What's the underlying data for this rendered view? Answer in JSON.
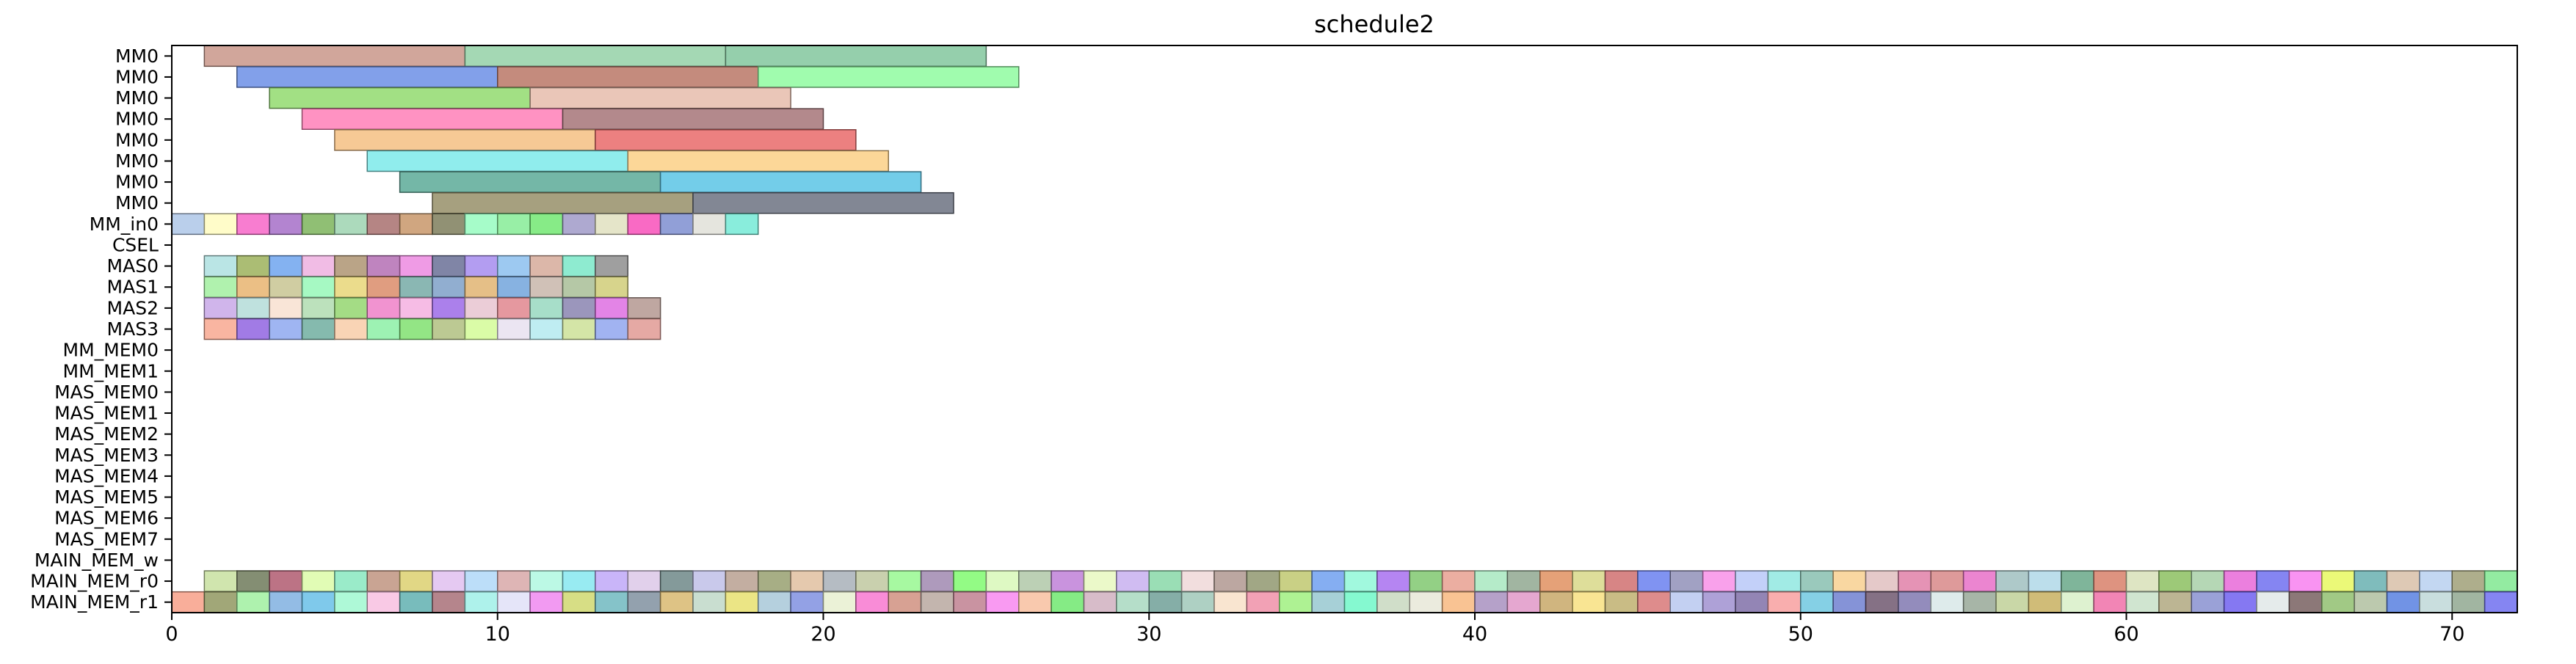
{
  "chart_data": {
    "type": "gantt",
    "title": "schedule2",
    "xlim": [
      0,
      72
    ],
    "x_ticks": [
      0,
      10,
      20,
      30,
      40,
      50,
      60,
      70
    ],
    "y_labels": [
      "MM0",
      "MM0",
      "MM0",
      "MM0",
      "MM0",
      "MM0",
      "MM0",
      "MM0",
      "MM_in0",
      "CSEL",
      "MAS0",
      "MAS1",
      "MAS2",
      "MAS3",
      "MM_MEM0",
      "MM_MEM1",
      "MAS_MEM0",
      "MAS_MEM1",
      "MAS_MEM2",
      "MAS_MEM3",
      "MAS_MEM4",
      "MAS_MEM5",
      "MAS_MEM6",
      "MAS_MEM7",
      "MAIN_MEM_w",
      "MAIN_MEM_r0",
      "MAIN_MEM_r1"
    ],
    "grid": false,
    "rows": {
      "0": {
        "bars": [
          [
            1,
            8
          ],
          [
            9,
            8
          ],
          [
            17,
            8
          ]
        ],
        "colors": [
          "#c9968a",
          "#94d1a7",
          "#83c79e"
        ]
      },
      "1": {
        "bars": [
          [
            2,
            8
          ],
          [
            10,
            8
          ],
          [
            18,
            8
          ]
        ],
        "colors": [
          "#6c8fe6",
          "#ba7766",
          "#8ffca0"
        ]
      },
      "2": {
        "bars": [
          [
            3,
            8
          ],
          [
            11,
            8
          ]
        ],
        "colors": [
          "#92da6e",
          "#e6bcab"
        ]
      },
      "3": {
        "bars": [
          [
            4,
            8
          ],
          [
            12,
            8
          ]
        ],
        "colors": [
          "#ff7fb7",
          "#a67478"
        ]
      },
      "4": {
        "bars": [
          [
            5,
            8
          ],
          [
            13,
            8
          ]
        ],
        "colors": [
          "#f4bf82",
          "#e96a6a"
        ]
      },
      "5": {
        "bars": [
          [
            6,
            8
          ],
          [
            14,
            8
          ]
        ],
        "colors": [
          "#7ceaea",
          "#fbd086"
        ]
      },
      "6": {
        "bars": [
          [
            7,
            8
          ],
          [
            15,
            8
          ]
        ],
        "colors": [
          "#5caa98",
          "#5ac4e5"
        ]
      },
      "7": {
        "bars": [
          [
            8,
            8
          ],
          [
            16,
            8
          ]
        ],
        "colors": [
          "#968f69",
          "#6c7281"
        ]
      },
      "8": {
        "bars": [
          [
            0,
            1
          ],
          [
            1,
            1
          ],
          [
            2,
            1
          ],
          [
            3,
            1
          ],
          [
            4,
            1
          ],
          [
            5,
            1
          ],
          [
            6,
            1
          ],
          [
            7,
            1
          ],
          [
            8,
            1
          ],
          [
            9,
            1
          ],
          [
            10,
            1
          ],
          [
            11,
            1
          ],
          [
            12,
            1
          ],
          [
            13,
            1
          ],
          [
            14,
            1
          ],
          [
            15,
            1
          ],
          [
            16,
            1
          ],
          [
            17,
            1
          ]
        ],
        "colors": [
          "#aec7e8",
          "#fffbc0",
          "#f766c8",
          "#a66ec8",
          "#7cb45c",
          "#9ed4b0",
          "#a8706e",
          "#c8966a",
          "#7e7e5c",
          "#96fcc0",
          "#86ec96",
          "#72e872",
          "#a09ac8",
          "#e0e0c0",
          "#f850ba",
          "#7e8ed0",
          "#e0e0d8",
          "#74ead6"
        ]
      },
      "9": {
        "bars": [],
        "colors": []
      },
      "10": {
        "bars": [
          [
            1,
            1
          ],
          [
            2,
            1
          ],
          [
            3,
            1
          ],
          [
            4,
            1
          ],
          [
            5,
            1
          ],
          [
            6,
            1
          ],
          [
            7,
            1
          ],
          [
            8,
            1
          ],
          [
            9,
            1
          ],
          [
            10,
            1
          ],
          [
            11,
            1
          ],
          [
            12,
            1
          ],
          [
            13,
            1
          ]
        ],
        "colors": [
          "#aee0e0",
          "#9cb25c",
          "#6ea4ee",
          "#eeb0e0",
          "#ae9472",
          "#b46eb4",
          "#ec8ae0",
          "#6a7096",
          "#a68cee",
          "#8cc0ee",
          "#d6aa9a",
          "#7ae8c8",
          "#8e8e8e"
        ]
      },
      "11": {
        "bars": [
          [
            1,
            1
          ],
          [
            2,
            1
          ],
          [
            3,
            1
          ],
          [
            4,
            1
          ],
          [
            5,
            1
          ],
          [
            6,
            1
          ],
          [
            7,
            1
          ],
          [
            8,
            1
          ],
          [
            9,
            1
          ],
          [
            10,
            1
          ],
          [
            11,
            1
          ],
          [
            12,
            1
          ],
          [
            13,
            1
          ]
        ],
        "colors": [
          "#a2f0a0",
          "#e8b470",
          "#c8c492",
          "#96f8b8",
          "#e8d678",
          "#da8c6a",
          "#76aaa6",
          "#7ea0c8",
          "#e0b472",
          "#72a4dc",
          "#c8b6aa",
          "#a8be96",
          "#d0cc78"
        ]
      },
      "12": {
        "bars": [
          [
            1,
            1
          ],
          [
            2,
            1
          ],
          [
            3,
            1
          ],
          [
            4,
            1
          ],
          [
            5,
            1
          ],
          [
            6,
            1
          ],
          [
            7,
            1
          ],
          [
            8,
            1
          ],
          [
            9,
            1
          ],
          [
            10,
            1
          ],
          [
            11,
            1
          ],
          [
            12,
            1
          ],
          [
            13,
            1
          ],
          [
            14,
            1
          ]
        ],
        "colors": [
          "#c8a8e8",
          "#b4dcd8",
          "#f8e0d0",
          "#b0dcb0",
          "#94d670",
          "#ee80c8",
          "#f4b0e0",
          "#9c6ae8",
          "#e8c4d0",
          "#e0868e",
          "#98d8c0",
          "#8a84b0",
          "#de6ee2",
          "#b49890"
        ]
      },
      "13": {
        "bars": [
          [
            1,
            1
          ],
          [
            2,
            1
          ],
          [
            3,
            1
          ],
          [
            4,
            1
          ],
          [
            5,
            1
          ],
          [
            6,
            1
          ],
          [
            7,
            1
          ],
          [
            8,
            1
          ],
          [
            9,
            1
          ],
          [
            10,
            1
          ],
          [
            11,
            1
          ],
          [
            12,
            1
          ],
          [
            13,
            1
          ],
          [
            14,
            1
          ]
        ],
        "colors": [
          "#f8a890",
          "#9064e0",
          "#8ea8f0",
          "#70aea0",
          "#f8cca8",
          "#8cf0a6",
          "#80e070",
          "#b0c080",
          "#d4fc98",
          "#e8e0f0",
          "#b4eaf0",
          "#cce098",
          "#90a6ee",
          "#e09a94"
        ]
      },
      "14": {
        "bars": [],
        "colors": []
      },
      "15": {
        "bars": [],
        "colors": []
      },
      "16": {
        "bars": [],
        "colors": []
      },
      "17": {
        "bars": [],
        "colors": []
      },
      "18": {
        "bars": [],
        "colors": []
      },
      "19": {
        "bars": [],
        "colors": []
      },
      "20": {
        "bars": [],
        "colors": []
      },
      "21": {
        "bars": [],
        "colors": []
      },
      "22": {
        "bars": [],
        "colors": []
      },
      "23": {
        "bars": [],
        "colors": []
      },
      "24": {
        "bars": [],
        "colors": []
      },
      "25": {
        "bars": [
          [
            1,
            71
          ]
        ],
        "unit": 1,
        "colors": [
          "#c8e0a0",
          "#6e7a5a",
          "#b05a70",
          "#dcfca8",
          "#88e8c0",
          "#c09480",
          "#dcd070",
          "#e0c0f0",
          "#b0d8f8",
          "#d8a8a8",
          "#b0f8e0",
          "#86e8f0",
          "#c0a8f8",
          "#dcc8e8",
          "#6e8888",
          "#c0c0e8",
          "#b8a090",
          "#98a070",
          "#e0c0a0",
          "#a8b0b8",
          "#c0c8a0",
          "#98f890",
          "#a088b0",
          "#80fa70",
          "#d8f8b8",
          "#b0c8a8",
          "#c080d8",
          "#e8f8c0",
          "#c8b0f0",
          "#88d8a8",
          "#f0d8d8",
          "#b09890",
          "#909870",
          "#c0c870",
          "#70a0f0",
          "#90f8d8",
          "#a870f0",
          "#80c870",
          "#e8a090",
          "#a8e8c0",
          "#90a890",
          "#e09060",
          "#d8d888",
          "#d07070",
          "#6a80f0",
          "#9090b8",
          "#f890e8",
          "#b8c8f8",
          "#90e8e0",
          "#88c0b0",
          "#f8d090",
          "#e0c0c0",
          "#e080a8",
          "#d88888",
          "#e870c8",
          "#a0c0c0",
          "#b0d8e8",
          "#68a888",
          "#d8806a",
          "#d8e0b8",
          "#8cc060",
          "#a8d0a8",
          "#e868d8",
          "#7070f0",
          "#f880f0",
          "#e8f860",
          "#68b0b0",
          "#d8c0a8",
          "#b8d0f0",
          "#a0a078",
          "#80e890"
        ]
      },
      "26": {
        "bars": [
          [
            0,
            72
          ]
        ],
        "unit": 1,
        "colors": [
          "#f8a088",
          "#909860",
          "#a0f0a0",
          "#80b0e0",
          "#68c0e8",
          "#a0f8d0",
          "#f8c0e0",
          "#60b0b0",
          "#a87078",
          "#a0f0e8",
          "#e0e0f8",
          "#f088f0",
          "#d0d870",
          "#70b8c0",
          "#8090a0",
          "#d8b870",
          "#c0d8c8",
          "#e8e070",
          "#a8c8d8",
          "#8090e0",
          "#e8f0d0",
          "#f878d0",
          "#d09080",
          "#b8a8a0",
          "#c08090",
          "#f888f0",
          "#f8c0a0",
          "#70e870",
          "#d0b0c0",
          "#a8d8c0",
          "#70a098",
          "#a0c8b8",
          "#f8e0c8",
          "#f090a8",
          "#a0f080",
          "#98c8d0",
          "#70f8c8",
          "#c8d8c0",
          "#e8e8d8",
          "#f8b880",
          "#a890c0",
          "#e098c8",
          "#c8a868",
          "#f8e080",
          "#c0b070",
          "#d87878",
          "#b8c8f0",
          "#a090d0",
          "#8070a8",
          "#f8a0a0",
          "#70c8e0",
          "#7080d0",
          "#705870",
          "#8078b0",
          "#d8e8e8",
          "#98a898",
          "#c0d098",
          "#c8b060",
          "#d8f0c8",
          "#f070a8",
          "#c8e0c8",
          "#b0a880",
          "#8890d0",
          "#7060f0",
          "#e0e8e8",
          "#786060",
          "#90c070",
          "#b0c0a0",
          "#5880e0",
          "#c0d8d8",
          "#90a890",
          "#7070f0"
        ]
      }
    }
  }
}
